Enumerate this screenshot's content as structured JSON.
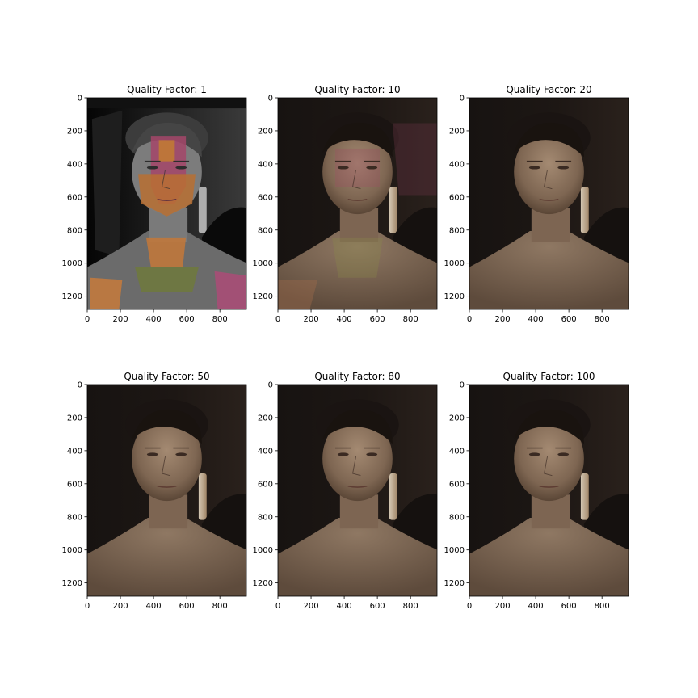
{
  "figure": {
    "background": "#ffffff"
  },
  "chart_data": [
    {
      "type": "image",
      "title": "Quality Factor: 1",
      "quality_factor": 1,
      "xlim": [
        0,
        960
      ],
      "ylim": [
        1280,
        0
      ],
      "xticks": [
        0,
        200,
        400,
        600,
        800
      ],
      "yticks": [
        0,
        200,
        400,
        600,
        800,
        1000,
        1200
      ],
      "artifacts": "heavy posterization with false colors"
    },
    {
      "type": "image",
      "title": "Quality Factor: 10",
      "quality_factor": 10,
      "xlim": [
        0,
        960
      ],
      "ylim": [
        1280,
        0
      ],
      "xticks": [
        0,
        200,
        400,
        600,
        800
      ],
      "yticks": [
        0,
        200,
        400,
        600,
        800,
        1000,
        1200
      ],
      "artifacts": "moderate blocky color tinting"
    },
    {
      "type": "image",
      "title": "Quality Factor: 20",
      "quality_factor": 20,
      "xlim": [
        0,
        960
      ],
      "ylim": [
        1280,
        0
      ],
      "xticks": [
        0,
        200,
        400,
        600,
        800
      ],
      "yticks": [
        0,
        200,
        400,
        600,
        800,
        1000,
        1200
      ],
      "artifacts": "minor"
    },
    {
      "type": "image",
      "title": "Quality Factor: 50",
      "quality_factor": 50,
      "xlim": [
        0,
        960
      ],
      "ylim": [
        1280,
        0
      ],
      "xticks": [
        0,
        200,
        400,
        600,
        800
      ],
      "yticks": [
        0,
        200,
        400,
        600,
        800,
        1000,
        1200
      ],
      "artifacts": "none visible"
    },
    {
      "type": "image",
      "title": "Quality Factor: 80",
      "quality_factor": 80,
      "xlim": [
        0,
        960
      ],
      "ylim": [
        1280,
        0
      ],
      "xticks": [
        0,
        200,
        400,
        600,
        800
      ],
      "yticks": [
        0,
        200,
        400,
        600,
        800,
        1000,
        1200
      ],
      "artifacts": "none visible"
    },
    {
      "type": "image",
      "title": "Quality Factor: 100",
      "quality_factor": 100,
      "xlim": [
        0,
        960
      ],
      "ylim": [
        1280,
        0
      ],
      "xticks": [
        0,
        200,
        400,
        600,
        800
      ],
      "yticks": [
        0,
        200,
        400,
        600,
        800,
        1000,
        1200
      ],
      "artifacts": "none visible"
    }
  ]
}
